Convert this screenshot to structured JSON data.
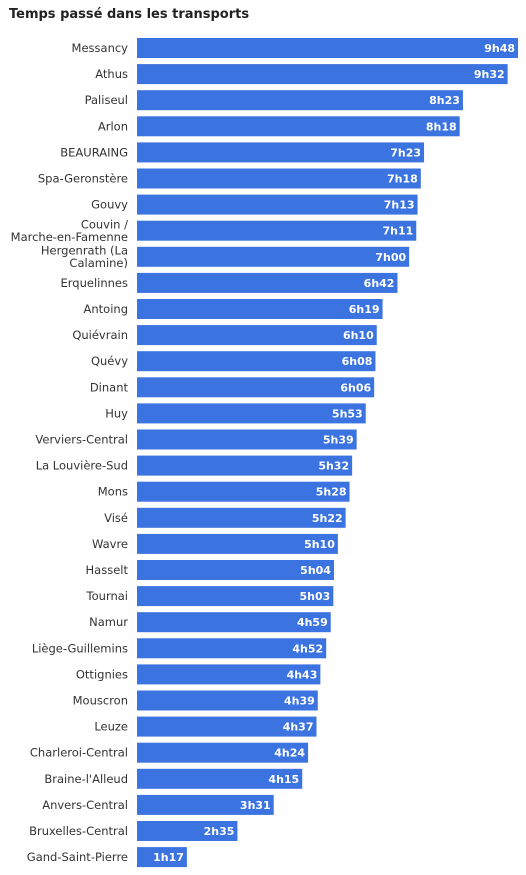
{
  "chart_data": {
    "type": "bar",
    "orientation": "horizontal",
    "title": "Temps passé dans les transports",
    "bar_color": "#3b73e0",
    "label_color": "#ffffff",
    "value_unit": "minutes",
    "categories": [
      "Messancy",
      "Athus",
      "Paliseul",
      "Arlon",
      "BEAURAING",
      "Spa-Geronstère",
      "Gouvy",
      "Couvin / Marche-en-Famenne",
      "Hergenrath (La Calamine)",
      "Erquelinnes",
      "Antoing",
      "Quiévrain",
      "Quévy",
      "Dinant",
      "Huy",
      "Verviers-Central",
      "La Louvière-Sud",
      "Mons",
      "Visé",
      "Wavre",
      "Hasselt",
      "Tournai",
      "Namur",
      "Liège-Guillemins",
      "Ottignies",
      "Mouscron",
      "Leuze",
      "Charleroi-Central",
      "Braine-l'Alleud",
      "Anvers-Central",
      "Bruxelles-Central",
      "Gand-Saint-Pierre"
    ],
    "category_lines": [
      [
        "Messancy"
      ],
      [
        "Athus"
      ],
      [
        "Paliseul"
      ],
      [
        "Arlon"
      ],
      [
        "BEAURAING"
      ],
      [
        "Spa-Geronstère"
      ],
      [
        "Gouvy"
      ],
      [
        "Couvin /",
        "Marche-en-Famenne"
      ],
      [
        "Hergenrath (La",
        "Calamine)"
      ],
      [
        "Erquelinnes"
      ],
      [
        "Antoing"
      ],
      [
        "Quiévrain"
      ],
      [
        "Quévy"
      ],
      [
        "Dinant"
      ],
      [
        "Huy"
      ],
      [
        "Verviers-Central"
      ],
      [
        "La Louvière-Sud"
      ],
      [
        "Mons"
      ],
      [
        "Visé"
      ],
      [
        "Wavre"
      ],
      [
        "Hasselt"
      ],
      [
        "Tournai"
      ],
      [
        "Namur"
      ],
      [
        "Liège-Guillemins"
      ],
      [
        "Ottignies"
      ],
      [
        "Mouscron"
      ],
      [
        "Leuze"
      ],
      [
        "Charleroi-Central"
      ],
      [
        "Braine-l'Alleud"
      ],
      [
        "Anvers-Central"
      ],
      [
        "Bruxelles-Central"
      ],
      [
        "Gand-Saint-Pierre"
      ]
    ],
    "values": [
      588,
      572,
      503,
      498,
      443,
      438,
      433,
      431,
      420,
      402,
      379,
      370,
      368,
      366,
      353,
      339,
      332,
      328,
      322,
      310,
      304,
      303,
      299,
      292,
      283,
      279,
      277,
      264,
      255,
      211,
      155,
      77
    ],
    "value_labels": [
      "9h48",
      "9h32",
      "8h23",
      "8h18",
      "7h23",
      "7h18",
      "7h13",
      "7h11",
      "7h00",
      "6h42",
      "6h19",
      "6h10",
      "6h08",
      "6h06",
      "5h53",
      "5h39",
      "5h32",
      "5h28",
      "5h22",
      "5h10",
      "5h04",
      "5h03",
      "4h59",
      "4h52",
      "4h43",
      "4h39",
      "4h37",
      "4h24",
      "4h15",
      "3h31",
      "2h35",
      "1h17"
    ],
    "xlim": [
      0,
      588
    ],
    "grid": false
  }
}
